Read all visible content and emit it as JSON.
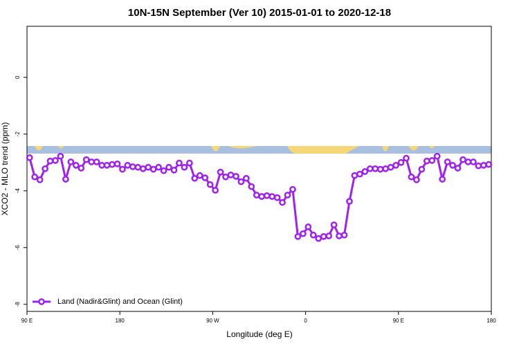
{
  "chart_data": {
    "type": "line",
    "title": "10N-15N September (Ver 10)   2015-01-01 to 2020-12-18",
    "x_label": "Longitude (deg E)",
    "y_label": "XCO2 - MLO trend (ppm)",
    "x": [
      92.5,
      97.5,
      102.5,
      107.5,
      112.5,
      117.5,
      122.5,
      127.5,
      132.5,
      137.5,
      142.5,
      147.5,
      152.5,
      157.5,
      162.5,
      167.5,
      172.5,
      177.5,
      182.5,
      187.5,
      192.5,
      197.5,
      202.5,
      207.5,
      212.5,
      217.5,
      222.5,
      227.5,
      232.5,
      237.5,
      242.5,
      247.5,
      252.5,
      257.5,
      262.5,
      267.5,
      272.5,
      277.5,
      282.5,
      287.5,
      292.5,
      297.5,
      302.5,
      307.5,
      312.5,
      317.5,
      322.5,
      327.5,
      332.5,
      337.5,
      342.5,
      347.5,
      352.5,
      357.5,
      362.5,
      367.5,
      372.5,
      377.5,
      382.5,
      387.5,
      392.5,
      397.5,
      402.5,
      407.5,
      412.5,
      417.5,
      422.5,
      427.5,
      432.5,
      437.5,
      442.5,
      447.5,
      452.5,
      457.5,
      462.5,
      467.5,
      472.5,
      477.5,
      482.5,
      487.5,
      492.5,
      497.5,
      502.5,
      507.5,
      512.5,
      517.5,
      522.5,
      527.5,
      532.5,
      537.5
    ],
    "series": [
      {
        "name": "Land (Nadir&Glint) and Ocean (Glint)",
        "color": "#a020f0",
        "values": [
          -2.83,
          -3.51,
          -3.61,
          -3.22,
          -2.95,
          -2.93,
          -2.78,
          -3.59,
          -2.98,
          -3.1,
          -3.2,
          -2.9,
          -2.98,
          -2.98,
          -3.1,
          -3.1,
          -3.07,
          -3.05,
          -3.24,
          -3.1,
          -3.15,
          -3.17,
          -3.22,
          -3.17,
          -3.24,
          -3.17,
          -3.29,
          -3.17,
          -3.27,
          -3.02,
          -3.17,
          -3.02,
          -3.56,
          -3.46,
          -3.54,
          -3.78,
          -3.98,
          -3.34,
          -3.51,
          -3.44,
          -3.49,
          -3.68,
          -3.56,
          -3.85,
          -4.15,
          -4.2,
          -4.17,
          -4.2,
          -4.24,
          -4.41,
          -4.15,
          -3.95,
          -5.61,
          -5.51,
          -5.27,
          -5.56,
          -5.68,
          -5.61,
          -5.59,
          -5.2,
          -5.59,
          -5.56,
          -4.37,
          -3.46,
          -3.41,
          -3.32,
          -3.22,
          -3.22,
          -3.24,
          -3.22,
          -3.17,
          -3.1,
          -3.0,
          -2.85,
          -3.51,
          -3.61,
          -3.24,
          -2.95,
          -2.93,
          -2.78,
          -3.59,
          -2.98,
          -3.1,
          -3.2,
          -2.9,
          -2.98,
          -2.98,
          -3.12,
          -3.1,
          -3.07
        ]
      }
    ],
    "xlim": [
      90,
      540
    ],
    "xticks": [
      {
        "value": 90,
        "label": "90 E"
      },
      {
        "value": 180,
        "label": "180"
      },
      {
        "value": 270,
        "label": "90 W"
      },
      {
        "value": 360,
        "label": "0"
      },
      {
        "value": 450,
        "label": "90 E"
      },
      {
        "value": 540,
        "label": "180"
      }
    ],
    "ylim": [
      -8.25,
      1.8
    ],
    "yticks": [
      0,
      -2,
      -4,
      -6,
      -8
    ],
    "legend": "bottom-left"
  }
}
